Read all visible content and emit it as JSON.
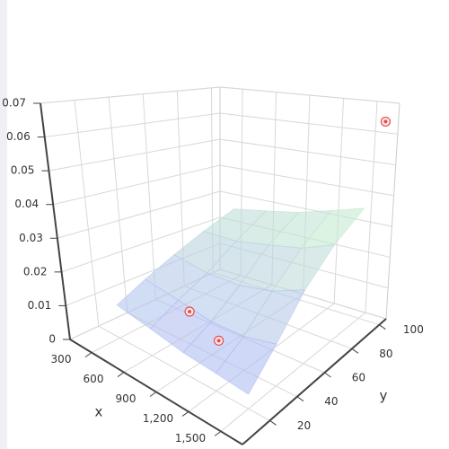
{
  "chart_data": {
    "type": "surface3d",
    "x": [
      300,
      600,
      900,
      1200,
      1500
    ],
    "y": [
      20,
      40,
      60,
      80,
      100
    ],
    "z": [
      [
        0.01,
        0.008,
        0.006,
        0.005,
        0.004
      ],
      [
        0.014,
        0.012,
        0.01,
        0.01,
        0.012
      ],
      [
        0.018,
        0.016,
        0.016,
        0.018,
        0.022
      ],
      [
        0.022,
        0.022,
        0.024,
        0.026,
        0.03
      ],
      [
        0.026,
        0.028,
        0.03,
        0.033,
        0.036
      ]
    ],
    "colorscale": [
      "#aab0ff",
      "#c8f0c8",
      "#f0f0b0"
    ],
    "opacity": 0.6,
    "points": {
      "x": [
        1650,
        700,
        1100
      ],
      "y": [
        100,
        40,
        30
      ],
      "z": [
        0.065,
        0.01,
        0.01
      ],
      "color": "#e05050"
    },
    "xlim": [
      100,
      1700
    ],
    "ylim": [
      0,
      105
    ],
    "zlim": [
      0,
      0.07
    ],
    "xticks": [
      300,
      600,
      900,
      {
        "value": 1200,
        "label": "1,200"
      },
      {
        "value": 1500,
        "label": "1,500"
      }
    ],
    "yticks": [
      20,
      40,
      60,
      80,
      100
    ],
    "zticks": [
      0,
      0.01,
      0.02,
      0.03,
      0.04,
      0.05,
      0.06,
      0.07
    ],
    "xlabel": "x",
    "ylabel": "y",
    "grid": true
  }
}
